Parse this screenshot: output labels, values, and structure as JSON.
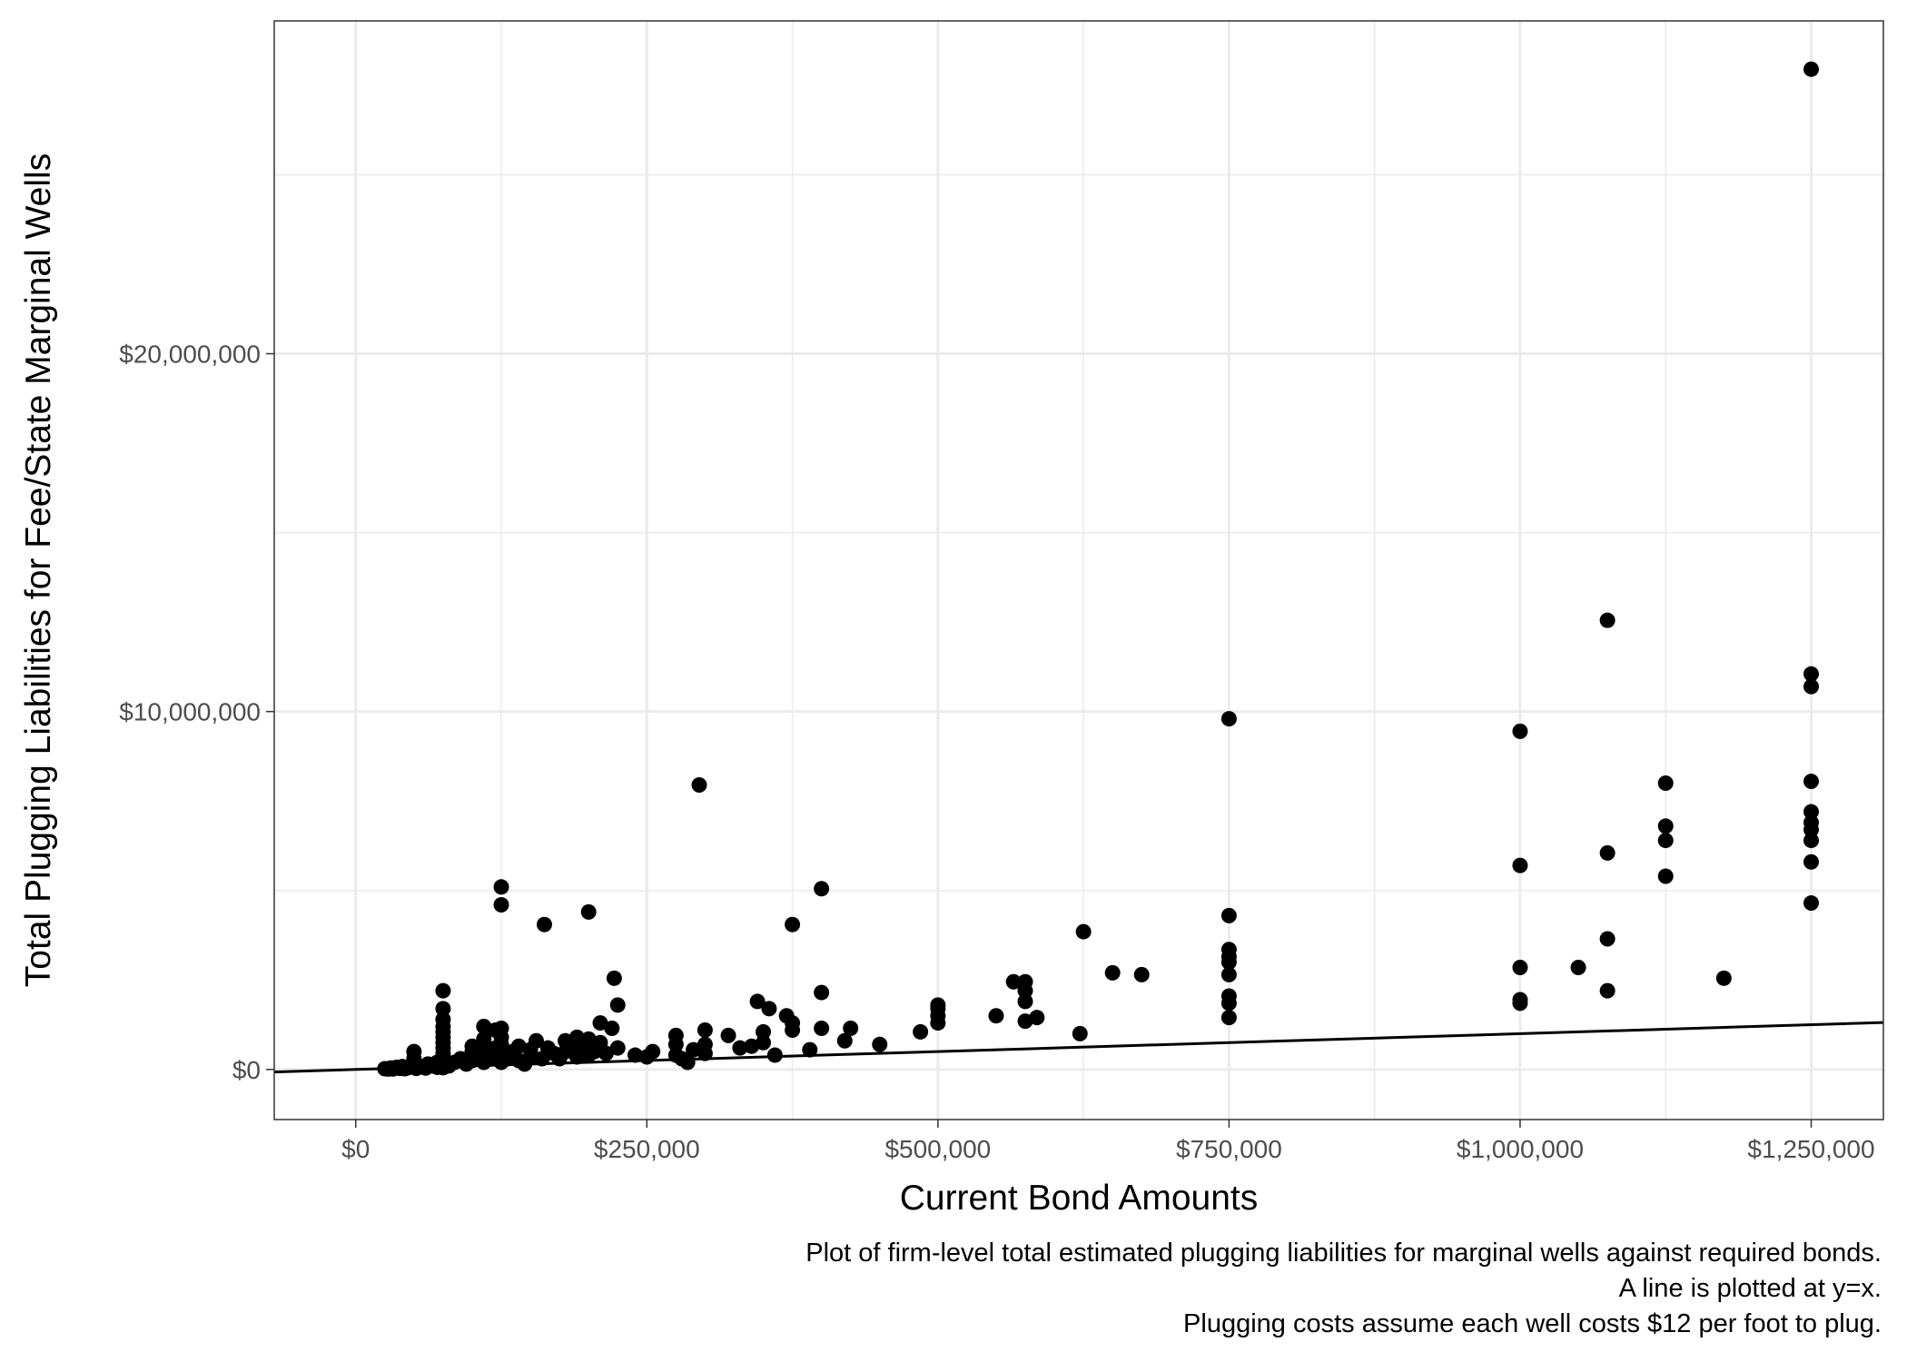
{
  "chart_data": {
    "type": "scatter",
    "xlabel": "Current Bond Amounts",
    "ylabel": "Total Plugging Liabilities for Fee/State Marginal Wells",
    "caption": [
      "Plot of firm-level total estimated plugging liabilities for marginal wells against required bonds.",
      "A line is plotted at y=x.",
      "Plugging costs assume each well costs $12 per foot to plug."
    ],
    "xlim": [
      -70000,
      1312000
    ],
    "ylim": [
      -1400000,
      29300000
    ],
    "x_ticks": [
      0,
      250000,
      500000,
      750000,
      1000000,
      1250000
    ],
    "x_tick_labels": [
      "$0",
      "$250,000",
      "$500,000",
      "$750,000",
      "$1,000,000",
      "$1,250,000"
    ],
    "y_ticks": [
      0,
      10000000,
      20000000
    ],
    "y_tick_labels": [
      "$0",
      "$10,000,000",
      "$20,000,000"
    ],
    "x_minor_ticks": [
      125000,
      375000,
      625000,
      875000,
      1125000
    ],
    "y_minor_ticks": [
      5000000,
      15000000,
      25000000
    ],
    "grid": true,
    "theme": "bw",
    "reference_line": {
      "label": "y=x",
      "slope": 1,
      "intercept": 0
    },
    "colors": {
      "points": "#000000",
      "line": "#000000",
      "grid": "#ebebeb",
      "panel_border": "#333333",
      "tick_text": "#4d4d4d"
    },
    "series": [
      {
        "points": [
          [
            25000,
            20000
          ],
          [
            28000,
            10000
          ],
          [
            30000,
            40000
          ],
          [
            32000,
            15000
          ],
          [
            35000,
            60000
          ],
          [
            38000,
            30000
          ],
          [
            40000,
            80000
          ],
          [
            42000,
            20000
          ],
          [
            45000,
            50000
          ],
          [
            48000,
            120000
          ],
          [
            50000,
            90000
          ],
          [
            50000,
            300000
          ],
          [
            50000,
            500000
          ],
          [
            52000,
            30000
          ],
          [
            55000,
            70000
          ],
          [
            60000,
            40000
          ],
          [
            62000,
            150000
          ],
          [
            65000,
            100000
          ],
          [
            70000,
            60000
          ],
          [
            70000,
            200000
          ],
          [
            75000,
            50000
          ],
          [
            75000,
            150000
          ],
          [
            75000,
            250000
          ],
          [
            75000,
            350000
          ],
          [
            75000,
            450000
          ],
          [
            75000,
            600000
          ],
          [
            75000,
            750000
          ],
          [
            75000,
            900000
          ],
          [
            75000,
            1050000
          ],
          [
            75000,
            1200000
          ],
          [
            75000,
            1400000
          ],
          [
            75000,
            1700000
          ],
          [
            75000,
            2200000
          ],
          [
            80000,
            100000
          ],
          [
            85000,
            200000
          ],
          [
            90000,
            300000
          ],
          [
            95000,
            150000
          ],
          [
            100000,
            250000
          ],
          [
            100000,
            400000
          ],
          [
            100000,
            500000
          ],
          [
            100000,
            650000
          ],
          [
            105000,
            350000
          ],
          [
            110000,
            200000
          ],
          [
            110000,
            550000
          ],
          [
            110000,
            850000
          ],
          [
            110000,
            1200000
          ],
          [
            115000,
            300000
          ],
          [
            120000,
            450000
          ],
          [
            120000,
            600000
          ],
          [
            120000,
            1100000
          ],
          [
            125000,
            200000
          ],
          [
            125000,
            400000
          ],
          [
            125000,
            700000
          ],
          [
            125000,
            900000
          ],
          [
            125000,
            1150000
          ],
          [
            125000,
            4600000
          ],
          [
            125000,
            5100000
          ],
          [
            130000,
            300000
          ],
          [
            135000,
            500000
          ],
          [
            140000,
            250000
          ],
          [
            140000,
            650000
          ],
          [
            145000,
            150000
          ],
          [
            150000,
            350000
          ],
          [
            150000,
            550000
          ],
          [
            155000,
            800000
          ],
          [
            160000,
            300000
          ],
          [
            162000,
            4050000
          ],
          [
            165000,
            600000
          ],
          [
            170000,
            450000
          ],
          [
            175000,
            300000
          ],
          [
            180000,
            500000
          ],
          [
            180000,
            800000
          ],
          [
            185000,
            650000
          ],
          [
            190000,
            350000
          ],
          [
            190000,
            900000
          ],
          [
            195000,
            700000
          ],
          [
            200000,
            400000
          ],
          [
            200000,
            600000
          ],
          [
            200000,
            850000
          ],
          [
            200000,
            4400000
          ],
          [
            205000,
            500000
          ],
          [
            210000,
            750000
          ],
          [
            210000,
            1300000
          ],
          [
            215000,
            450000
          ],
          [
            220000,
            1150000
          ],
          [
            222000,
            2550000
          ],
          [
            225000,
            600000
          ],
          [
            225000,
            1800000
          ],
          [
            240000,
            400000
          ],
          [
            250000,
            350000
          ],
          [
            255000,
            500000
          ],
          [
            275000,
            400000
          ],
          [
            275000,
            700000
          ],
          [
            275000,
            950000
          ],
          [
            280000,
            300000
          ],
          [
            285000,
            200000
          ],
          [
            290000,
            550000
          ],
          [
            295000,
            7950000
          ],
          [
            300000,
            450000
          ],
          [
            300000,
            700000
          ],
          [
            300000,
            1100000
          ],
          [
            320000,
            950000
          ],
          [
            330000,
            600000
          ],
          [
            340000,
            650000
          ],
          [
            345000,
            1900000
          ],
          [
            350000,
            750000
          ],
          [
            350000,
            1050000
          ],
          [
            355000,
            1700000
          ],
          [
            360000,
            400000
          ],
          [
            370000,
            1500000
          ],
          [
            375000,
            1100000
          ],
          [
            375000,
            1300000
          ],
          [
            375000,
            4050000
          ],
          [
            390000,
            550000
          ],
          [
            400000,
            1150000
          ],
          [
            400000,
            2150000
          ],
          [
            400000,
            5050000
          ],
          [
            420000,
            800000
          ],
          [
            425000,
            1150000
          ],
          [
            450000,
            700000
          ],
          [
            485000,
            1050000
          ],
          [
            500000,
            1300000
          ],
          [
            500000,
            1500000
          ],
          [
            500000,
            1700000
          ],
          [
            500000,
            1800000
          ],
          [
            550000,
            1500000
          ],
          [
            565000,
            2450000
          ],
          [
            575000,
            1350000
          ],
          [
            575000,
            1900000
          ],
          [
            575000,
            2200000
          ],
          [
            575000,
            2450000
          ],
          [
            585000,
            1450000
          ],
          [
            622000,
            1000000
          ],
          [
            625000,
            3850000
          ],
          [
            650000,
            2700000
          ],
          [
            675000,
            2650000
          ],
          [
            750000,
            1450000
          ],
          [
            750000,
            1850000
          ],
          [
            750000,
            2050000
          ],
          [
            750000,
            2650000
          ],
          [
            750000,
            3000000
          ],
          [
            750000,
            3150000
          ],
          [
            750000,
            3350000
          ],
          [
            750000,
            4300000
          ],
          [
            750000,
            9800000
          ],
          [
            1000000,
            1850000
          ],
          [
            1000000,
            1950000
          ],
          [
            1000000,
            2850000
          ],
          [
            1000000,
            5700000
          ],
          [
            1000000,
            9450000
          ],
          [
            1050000,
            2850000
          ],
          [
            1075000,
            2200000
          ],
          [
            1075000,
            3650000
          ],
          [
            1075000,
            6050000
          ],
          [
            1075000,
            12550000
          ],
          [
            1125000,
            5400000
          ],
          [
            1125000,
            6400000
          ],
          [
            1125000,
            6800000
          ],
          [
            1125000,
            8000000
          ],
          [
            1175000,
            2550000
          ],
          [
            1250000,
            4650000
          ],
          [
            1250000,
            5800000
          ],
          [
            1250000,
            6400000
          ],
          [
            1250000,
            6700000
          ],
          [
            1250000,
            6900000
          ],
          [
            1250000,
            7200000
          ],
          [
            1250000,
            8050000
          ],
          [
            1250000,
            10700000
          ],
          [
            1250000,
            11050000
          ],
          [
            1250000,
            27950000
          ]
        ]
      }
    ]
  }
}
